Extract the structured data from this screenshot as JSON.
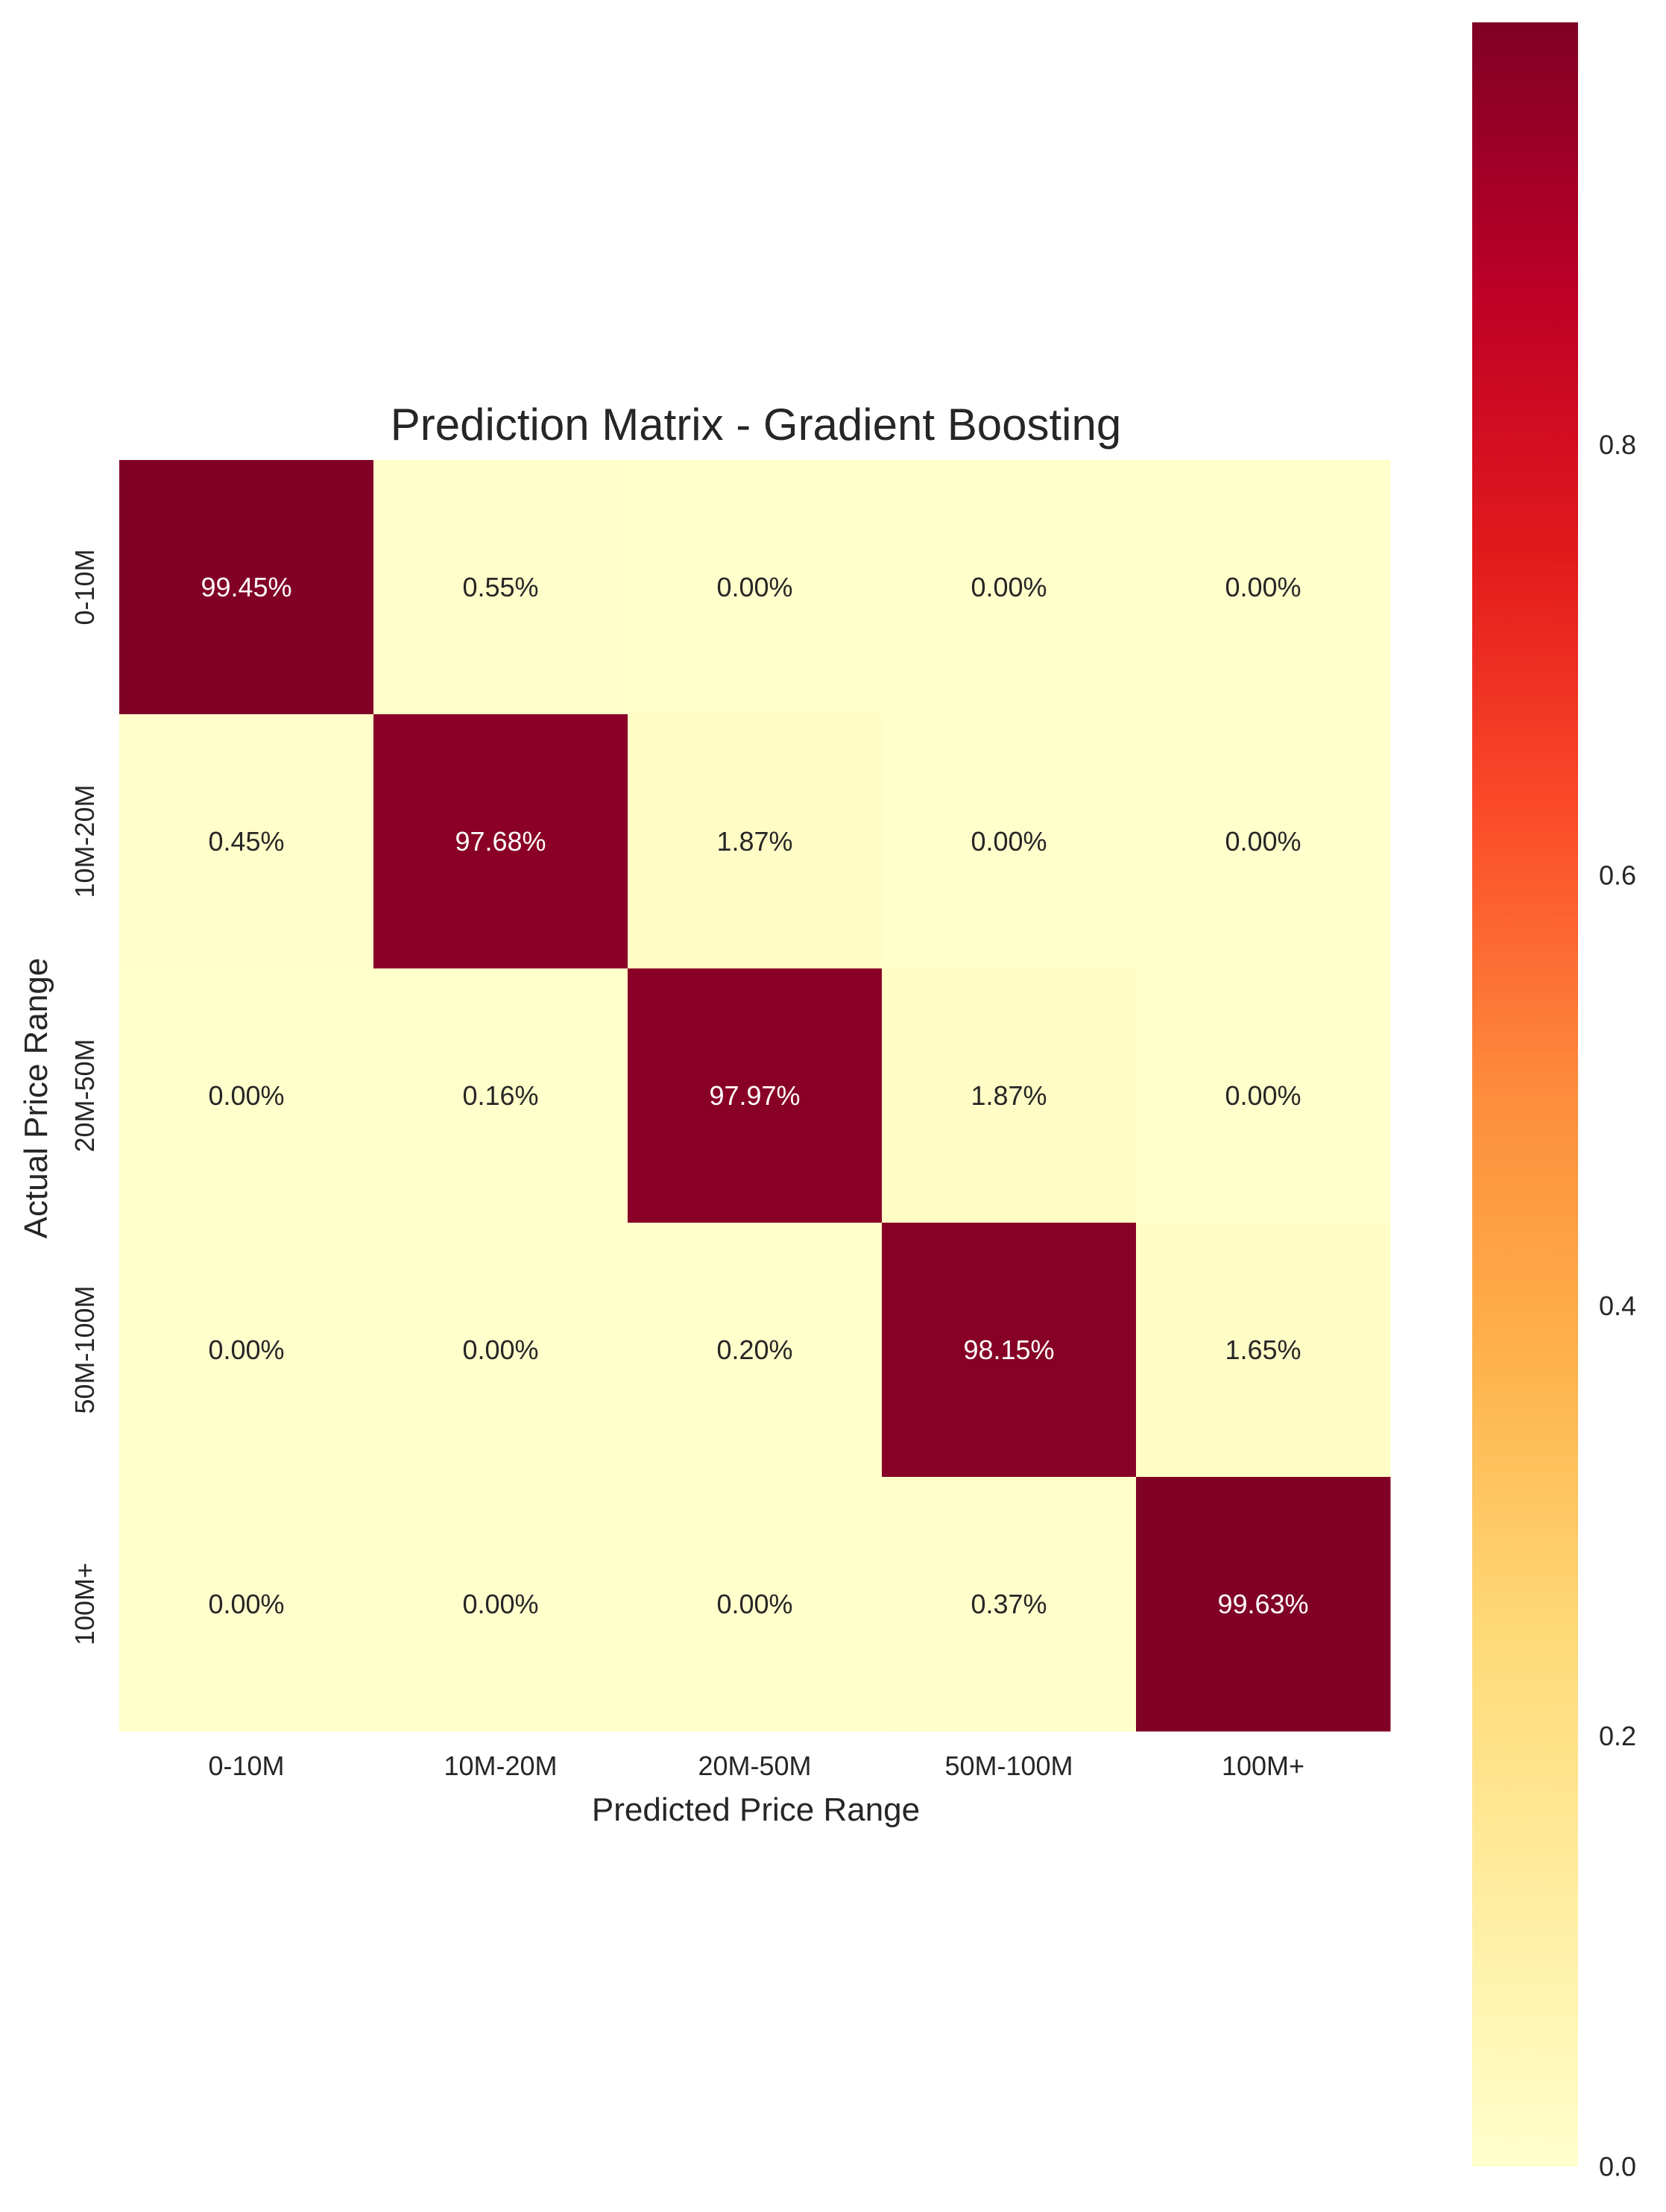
{
  "chart_data": {
    "type": "heatmap",
    "title": "Prediction Matrix - Gradient Boosting",
    "xlabel": "Predicted Price Range",
    "ylabel": "Actual Price Range",
    "x_categories": [
      "0-10M",
      "10M-20M",
      "20M-50M",
      "50M-100M",
      "100M+"
    ],
    "y_categories": [
      "0-10M",
      "10M-20M",
      "20M-50M",
      "50M-100M",
      "100M+"
    ],
    "values": [
      [
        0.9945,
        0.0055,
        0.0,
        0.0,
        0.0
      ],
      [
        0.0045,
        0.9768,
        0.0187,
        0.0,
        0.0
      ],
      [
        0.0,
        0.0016,
        0.9797,
        0.0187,
        0.0
      ],
      [
        0.0,
        0.0,
        0.002,
        0.9815,
        0.0165
      ],
      [
        0.0,
        0.0,
        0.0,
        0.0037,
        0.9963
      ]
    ],
    "cell_labels": [
      [
        "99.45%",
        "0.55%",
        "0.00%",
        "0.00%",
        "0.00%"
      ],
      [
        "0.45%",
        "97.68%",
        "1.87%",
        "0.00%",
        "0.00%"
      ],
      [
        "0.00%",
        "0.16%",
        "97.97%",
        "1.87%",
        "0.00%"
      ],
      [
        "0.00%",
        "0.00%",
        "0.20%",
        "98.15%",
        "1.65%"
      ],
      [
        "0.00%",
        "0.00%",
        "0.00%",
        "0.37%",
        "99.63%"
      ]
    ],
    "colormap": "YlOrRd",
    "colorbar": {
      "range": [
        0,
        0.9963
      ],
      "ticks": [
        0.0,
        0.2,
        0.4,
        0.6,
        0.8
      ],
      "tick_labels": [
        "0.0",
        "0.2",
        "0.4",
        "0.6",
        "0.8"
      ]
    },
    "grid": false
  }
}
